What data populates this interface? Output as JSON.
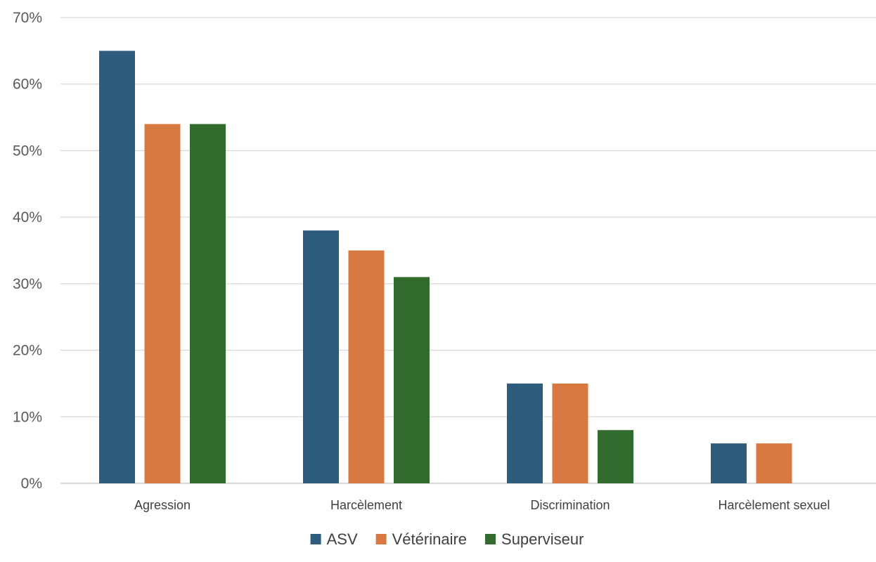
{
  "chart_data": {
    "type": "bar",
    "title": "",
    "xlabel": "",
    "ylabel": "",
    "ylim": [
      0,
      70
    ],
    "y_tick_step": 10,
    "y_tick_format": "percent",
    "grid": true,
    "legend_position": "bottom",
    "categories": [
      "Agression",
      "Harcèlement",
      "Discrimination",
      "Harcèlement sexuel"
    ],
    "series": [
      {
        "name": "ASV",
        "color": "#2e5c7d",
        "values": [
          65,
          38,
          15,
          6
        ]
      },
      {
        "name": "Vétérinaire",
        "color": "#d97942",
        "values": [
          54,
          35,
          15,
          6
        ]
      },
      {
        "name": "Superviseur",
        "color": "#336b2f",
        "values": [
          54,
          31,
          8,
          null
        ]
      }
    ]
  }
}
